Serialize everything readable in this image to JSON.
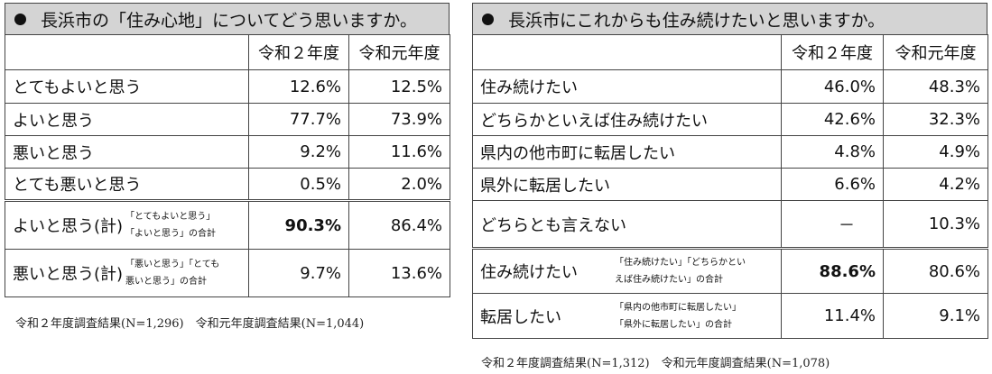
{
  "left": {
    "title": "長浜市の「住み心地」についてどう思いますか。",
    "col1": "令和２年度",
    "col2": "令和元年度",
    "rows": [
      {
        "label": "とてもよいと思う",
        "v1": "12.6%",
        "v2": "12.5%"
      },
      {
        "label": "よいと思う",
        "v1": "77.7%",
        "v2": "73.9%"
      },
      {
        "label": "悪いと思う",
        "v1": "9.2%",
        "v2": "11.6%"
      },
      {
        "label": "とても悪いと思う",
        "v1": "0.5%",
        "v2": "2.0%"
      }
    ],
    "totals": [
      {
        "label": "よいと思う(計)",
        "note1": "「とてもよいと思う」",
        "note2": "「よいと思う」の合計",
        "v1": "90.3%",
        "v2": "86.4%"
      },
      {
        "label": "悪いと思う(計)",
        "note1": "「悪いと思う」「とても",
        "note2": "悪いと思う」の合計",
        "v1": "9.7%",
        "v2": "13.6%"
      }
    ],
    "footer": "令和２年度調査結果(N=1,296)　令和元年度調査結果(N=1,044)"
  },
  "right": {
    "title": "長浜市にこれからも住み続けたいと思いますか。",
    "col1": "令和２年度",
    "col2": "令和元年度",
    "rows": [
      {
        "label": "住み続けたい",
        "v1": "46.0%",
        "v2": "48.3%"
      },
      {
        "label": "どちらかといえば住み続けたい",
        "v1": "42.6%",
        "v2": "32.3%"
      },
      {
        "label": "県内の他市町に転居したい",
        "v1": "4.8%",
        "v2": "4.9%"
      },
      {
        "label": "県外に転居したい",
        "v1": "6.6%",
        "v2": "4.2%"
      },
      {
        "label": "どちらとも言えない",
        "v1": "－",
        "v2": "10.3%"
      }
    ],
    "totals": [
      {
        "label": "住み続けたい",
        "note1": "「住み続けたい」「どちらかとい",
        "note2": "えば住み続けたい」の合計",
        "v1": "88.6%",
        "v2": "80.6%"
      },
      {
        "label": "転居したい",
        "note1": "「県内の他市町に転居したい」",
        "note2": "「県外に転居したい」の合計",
        "v1": "11.4%",
        "v2": "9.1%"
      }
    ],
    "footer": "令和２年度調査結果(N=1,312)　令和元年度調査結果(N=1,078)"
  }
}
